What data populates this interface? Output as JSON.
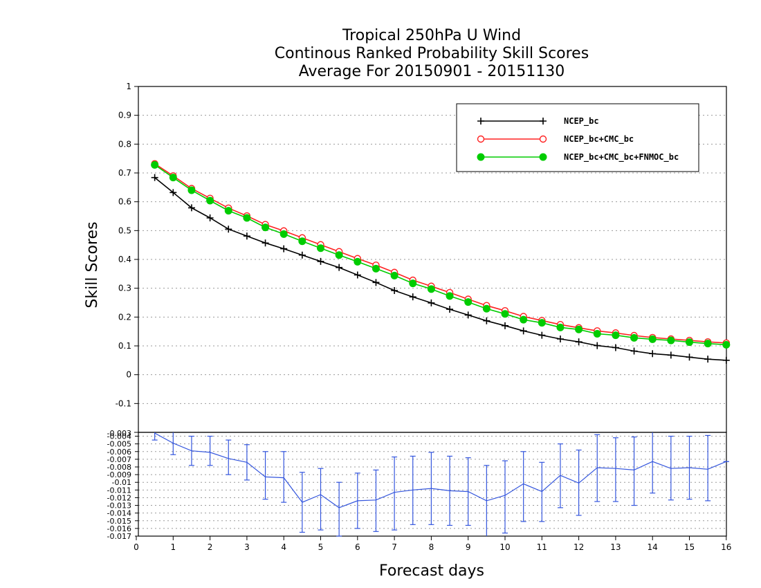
{
  "chart_data": {
    "title_lines": [
      "Tropical 250hPa U Wind",
      "Continous Ranked Probability Skill Scores",
      "Average For 20150901 - 20151130"
    ],
    "ylabel": "Skill Scores",
    "xlabel": "Forecast days",
    "x_ticks": [
      "0",
      "1",
      "2",
      "3",
      "4",
      "5",
      "6",
      "7",
      "8",
      "9",
      "10",
      "11",
      "12",
      "13",
      "14",
      "15",
      "16"
    ],
    "top_panel": {
      "type": "line",
      "ylim": [
        -0.2,
        1.0
      ],
      "y_ticks": [
        "1",
        "0.9",
        "0.8",
        "0.7",
        "0.6",
        "0.5",
        "0.4",
        "0.3",
        "0.2",
        "0.1",
        "0",
        "-0.1",
        "-0.2"
      ],
      "y_tick_values": [
        1,
        0.9,
        0.8,
        0.7,
        0.6,
        0.5,
        0.4,
        0.3,
        0.2,
        0.1,
        0,
        -0.1,
        -0.2
      ],
      "grid": true,
      "legend_position": "top-right",
      "x": [
        0.5,
        1,
        1.5,
        2,
        2.5,
        3,
        3.5,
        4,
        4.5,
        5,
        5.5,
        6,
        6.5,
        7,
        7.5,
        8,
        8.5,
        9,
        9.5,
        10,
        10.5,
        11,
        11.5,
        12,
        12.5,
        13,
        13.5,
        14,
        14.5,
        15,
        15.5,
        16
      ],
      "series": [
        {
          "name": "NCEP_bc",
          "color": "#000000",
          "marker": "plus",
          "values": [
            0.684,
            0.632,
            0.579,
            0.544,
            0.505,
            0.481,
            0.457,
            0.437,
            0.415,
            0.393,
            0.372,
            0.346,
            0.32,
            0.292,
            0.27,
            0.249,
            0.227,
            0.207,
            0.187,
            0.17,
            0.152,
            0.137,
            0.124,
            0.114,
            0.101,
            0.094,
            0.082,
            0.073,
            0.068,
            0.061,
            0.054,
            0.05
          ]
        },
        {
          "name": "NCEP_bc+CMC_bc",
          "color": "#ff2020",
          "marker": "open-circle",
          "values": [
            0.732,
            0.69,
            0.646,
            0.612,
            0.578,
            0.551,
            0.521,
            0.499,
            0.475,
            0.451,
            0.427,
            0.403,
            0.38,
            0.355,
            0.328,
            0.307,
            0.285,
            0.262,
            0.24,
            0.222,
            0.202,
            0.188,
            0.174,
            0.163,
            0.152,
            0.145,
            0.136,
            0.129,
            0.124,
            0.119,
            0.114,
            0.11
          ]
        },
        {
          "name": "NCEP_bc+CMC_bc+FNMOC_bc",
          "color": "#00cc00",
          "marker": "filled-circle",
          "values": [
            0.728,
            0.684,
            0.64,
            0.604,
            0.569,
            0.544,
            0.511,
            0.488,
            0.463,
            0.439,
            0.415,
            0.392,
            0.368,
            0.344,
            0.317,
            0.297,
            0.273,
            0.252,
            0.229,
            0.211,
            0.191,
            0.18,
            0.164,
            0.157,
            0.142,
            0.137,
            0.128,
            0.123,
            0.119,
            0.113,
            0.108,
            0.104
          ]
        }
      ]
    },
    "bottom_panel": {
      "type": "line-errorbar",
      "ylim": [
        -0.017,
        -0.0035
      ],
      "y_ticks": [
        "-0.004",
        "-0.005",
        "-0.006",
        "-0.007",
        "-0.008",
        "-0.009",
        "-0.01",
        "-0.011",
        "-0.012",
        "-0.013",
        "-0.014",
        "-0.015",
        "-0.016",
        "-0.017"
      ],
      "y_tick_values": [
        -0.004,
        -0.005,
        -0.006,
        -0.007,
        -0.008,
        -0.009,
        -0.01,
        -0.011,
        -0.012,
        -0.013,
        -0.014,
        -0.015,
        -0.016,
        -0.017
      ],
      "top_label": "-0.003",
      "grid": true,
      "color": "#3355dd",
      "x": [
        0.5,
        1,
        1.5,
        2,
        2.5,
        3,
        3.5,
        4,
        4.5,
        5,
        5.5,
        6,
        6.5,
        7,
        7.5,
        8,
        8.5,
        9,
        9.5,
        10,
        10.5,
        11,
        11.5,
        12,
        12.5,
        13,
        13.5,
        14,
        14.5,
        15,
        15.5,
        16
      ],
      "values": [
        -0.0036,
        -0.0049,
        -0.0059,
        -0.0061,
        -0.0069,
        -0.0074,
        -0.0093,
        -0.0094,
        -0.0126,
        -0.0116,
        -0.0133,
        -0.0124,
        -0.0123,
        -0.0113,
        -0.011,
        -0.0108,
        -0.0111,
        -0.0112,
        -0.0124,
        -0.0117,
        -0.0102,
        -0.0112,
        -0.0091,
        -0.0101,
        -0.0081,
        -0.0082,
        -0.0084,
        -0.0073,
        -0.0082,
        -0.0081,
        -0.0083,
        -0.0073
      ],
      "err_low": [
        -0.0045,
        -0.0064,
        -0.0078,
        -0.0078,
        -0.009,
        -0.0097,
        -0.0122,
        -0.0126,
        -0.0165,
        -0.0162,
        -0.017,
        -0.016,
        -0.0164,
        -0.0162,
        -0.0155,
        -0.0155,
        -0.0156,
        -0.0156,
        -0.0175,
        -0.0166,
        -0.0151,
        -0.0151,
        -0.0133,
        -0.0143,
        -0.0125,
        -0.0125,
        -0.013,
        -0.0114,
        -0.0123,
        -0.0122,
        -0.0124,
        -0.0073
      ],
      "err_high": [
        -0.0033,
        -0.0034,
        -0.004,
        -0.004,
        -0.0045,
        -0.0051,
        -0.006,
        -0.006,
        -0.0087,
        -0.0082,
        -0.01,
        -0.0088,
        -0.0084,
        -0.0067,
        -0.0066,
        -0.0061,
        -0.0066,
        -0.0068,
        -0.0078,
        -0.0072,
        -0.006,
        -0.0074,
        -0.005,
        -0.0058,
        -0.0038,
        -0.0042,
        -0.0041,
        -0.0033,
        -0.004,
        -0.004,
        -0.0039,
        -0.0073
      ]
    }
  }
}
